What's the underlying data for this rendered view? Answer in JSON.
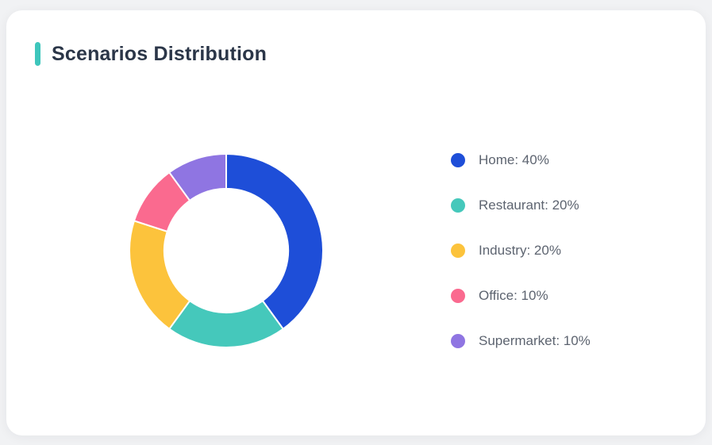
{
  "page": {
    "background_color": "#f1f2f4",
    "card_background_color": "#ffffff"
  },
  "card": {
    "title": "Scenarios Distribution",
    "accent_color": "#3ec6bc"
  },
  "chart_data": {
    "type": "pie",
    "subtype": "donut",
    "title": "Scenarios Distribution",
    "categories": [
      "Home",
      "Restaurant",
      "Industry",
      "Office",
      "Supermarket"
    ],
    "values": [
      40,
      20,
      20,
      10,
      10
    ],
    "unit": "%",
    "colors": [
      "#1e4ed8",
      "#45c8bb",
      "#fcc33c",
      "#fa6a8f",
      "#8f75e2"
    ],
    "legend_labels": [
      "Home: 40%",
      "Restaurant: 20%",
      "Industry: 20%",
      "Office: 10%",
      "Supermarket: 10%"
    ],
    "legend_position": "right",
    "start_angle_deg": 0,
    "direction": "clockwise",
    "inner_radius_ratio": 0.64,
    "slice_separator_color": "#ffffff"
  }
}
